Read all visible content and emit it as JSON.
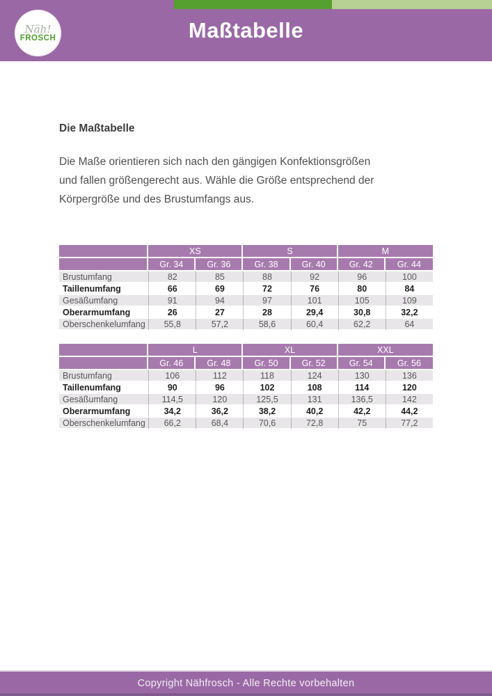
{
  "header": {
    "title": "Maßtabelle",
    "logo": {
      "script": "Näh!",
      "word": "FROSCH"
    }
  },
  "intro": {
    "heading": "Die Maßtabelle",
    "body": "Die Maße orientieren sich nach den gängigen Konfektionsgrößen\nund fallen größengerecht aus. Wähle die Größe entsprechend der\nKörpergröße und des Brustumfangs aus."
  },
  "tables": [
    {
      "size_groups": [
        "XS",
        "S",
        "M"
      ],
      "columns": [
        "Gr. 34",
        "Gr. 36",
        "Gr. 38",
        "Gr. 40",
        "Gr. 42",
        "Gr. 44"
      ],
      "rows": [
        {
          "label": "Brustumfang",
          "values": [
            "82",
            "85",
            "88",
            "92",
            "96",
            "100"
          ]
        },
        {
          "label": "Taillenumfang",
          "values": [
            "66",
            "69",
            "72",
            "76",
            "80",
            "84"
          ]
        },
        {
          "label": "Gesäßumfang",
          "values": [
            "91",
            "94",
            "97",
            "101",
            "105",
            "109"
          ]
        },
        {
          "label": "Oberarmumfang",
          "values": [
            "26",
            "27",
            "28",
            "29,4",
            "30,8",
            "32,2"
          ]
        },
        {
          "label": "Oberschenkelumfang",
          "values": [
            "55,8",
            "57,2",
            "58,6",
            "60,4",
            "62,2",
            "64"
          ]
        }
      ]
    },
    {
      "size_groups": [
        "L",
        "XL",
        "XXL"
      ],
      "columns": [
        "Gr. 46",
        "Gr. 48",
        "Gr. 50",
        "Gr. 52",
        "Gr. 54",
        "Gr. 56"
      ],
      "rows": [
        {
          "label": "Brustumfang",
          "values": [
            "106",
            "112",
            "118",
            "124",
            "130",
            "136"
          ]
        },
        {
          "label": "Taillenumfang",
          "values": [
            "90",
            "96",
            "102",
            "108",
            "114",
            "120"
          ]
        },
        {
          "label": "Gesäßumfang",
          "values": [
            "114,5",
            "120",
            "125,5",
            "131",
            "136,5",
            "142"
          ]
        },
        {
          "label": "Oberarmumfang",
          "values": [
            "34,2",
            "36,2",
            "38,2",
            "40,2",
            "42,2",
            "44,2"
          ]
        },
        {
          "label": "Oberschenkelumfang",
          "values": [
            "66,2",
            "68,4",
            "70,6",
            "72,8",
            "75",
            "77,2"
          ]
        }
      ]
    }
  ],
  "footer": {
    "text": "Copyright Nähfrosch - Alle Rechte vorbehalten"
  },
  "colors": {
    "header_purple": "#9a69a5",
    "table_header_purple": "#a77aae",
    "stripe_dark_green": "#55a02f",
    "stripe_light_green": "#b7d194",
    "row_gray": "#e8e6e8",
    "footer_bottom_purple": "#82598e",
    "logo_green": "#4f9e2e"
  }
}
